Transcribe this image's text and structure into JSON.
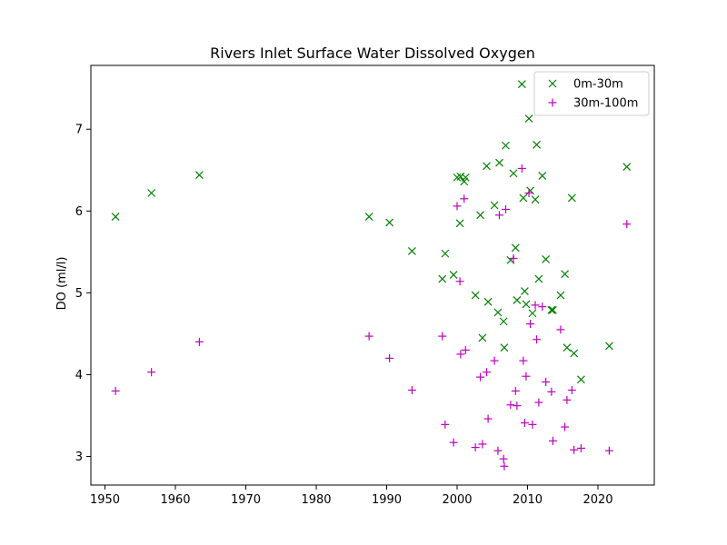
{
  "chart_data": {
    "type": "scatter",
    "title": "Rivers Inlet Surface Water Dissolved Oxygen",
    "xlabel": "",
    "ylabel": "DO (ml/l)",
    "xlim": [
      1948,
      2028
    ],
    "ylim": [
      2.65,
      7.78
    ],
    "xticks": [
      1950,
      1960,
      1970,
      1980,
      1990,
      2000,
      2010,
      2020
    ],
    "yticks": [
      3,
      4,
      5,
      6,
      7
    ],
    "grid": false,
    "legend_position": "top-right",
    "series": [
      {
        "name": "0m-30m",
        "marker": "x",
        "color": "#008000",
        "x": [
          1951.5,
          1956.6,
          1963.4,
          1987.5,
          1990.4,
          1993.6,
          1997.9,
          1998.3,
          1999.5,
          2000.0,
          2000.4,
          2000.5,
          2001.0,
          2001.2,
          2002.6,
          2003.3,
          2003.6,
          2004.2,
          2004.4,
          2005.3,
          2005.8,
          2006.0,
          2006.6,
          2006.7,
          2006.9,
          2007.6,
          2008.0,
          2008.3,
          2008.5,
          2009.2,
          2009.4,
          2009.6,
          2009.8,
          2010.2,
          2010.4,
          2010.7,
          2011.1,
          2011.3,
          2011.6,
          2012.1,
          2012.6,
          2013.4,
          2013.6,
          2014.7,
          2015.3,
          2015.6,
          2016.3,
          2016.6,
          2017.6,
          2021.6,
          2024.1
        ],
        "y": [
          5.93,
          6.22,
          6.44,
          5.93,
          5.86,
          5.51,
          5.17,
          5.48,
          5.22,
          6.41,
          5.85,
          6.42,
          6.36,
          6.41,
          4.97,
          5.95,
          4.45,
          6.55,
          4.89,
          6.07,
          4.76,
          6.59,
          4.65,
          4.33,
          6.8,
          5.4,
          6.46,
          5.55,
          4.91,
          7.55,
          6.16,
          5.02,
          4.86,
          7.13,
          6.25,
          4.75,
          6.14,
          6.81,
          5.17,
          6.43,
          5.41,
          4.79,
          4.79,
          4.97,
          5.23,
          4.33,
          6.16,
          4.26,
          3.94,
          4.35,
          6.54
        ]
      },
      {
        "name": "30m-100m",
        "marker": "+",
        "color": "#bf00bf",
        "x": [
          1951.5,
          1956.6,
          1963.4,
          1987.5,
          1990.4,
          1993.6,
          1997.9,
          1998.3,
          1999.5,
          2000.0,
          2000.4,
          2000.5,
          2001.0,
          2001.2,
          2002.6,
          2003.3,
          2003.6,
          2004.2,
          2004.4,
          2005.3,
          2005.8,
          2006.0,
          2006.6,
          2006.7,
          2006.9,
          2007.6,
          2008.0,
          2008.3,
          2008.5,
          2009.2,
          2009.4,
          2009.6,
          2009.8,
          2010.2,
          2010.4,
          2010.7,
          2011.1,
          2011.3,
          2011.6,
          2012.1,
          2012.6,
          2013.4,
          2013.6,
          2014.7,
          2015.3,
          2015.6,
          2016.3,
          2016.6,
          2017.6,
          2021.6,
          2024.1
        ],
        "y": [
          3.8,
          4.03,
          4.4,
          4.47,
          4.2,
          3.81,
          4.47,
          3.39,
          3.17,
          6.06,
          5.14,
          4.25,
          6.15,
          4.3,
          3.11,
          3.97,
          3.15,
          4.03,
          3.46,
          4.17,
          3.07,
          5.95,
          2.97,
          2.88,
          6.02,
          3.63,
          5.42,
          3.8,
          3.62,
          6.52,
          4.17,
          3.41,
          3.98,
          6.22,
          4.62,
          3.39,
          4.85,
          4.43,
          3.66,
          4.83,
          3.91,
          3.79,
          3.19,
          4.55,
          3.36,
          3.69,
          3.81,
          3.08,
          3.1,
          3.07,
          5.84
        ]
      }
    ]
  }
}
